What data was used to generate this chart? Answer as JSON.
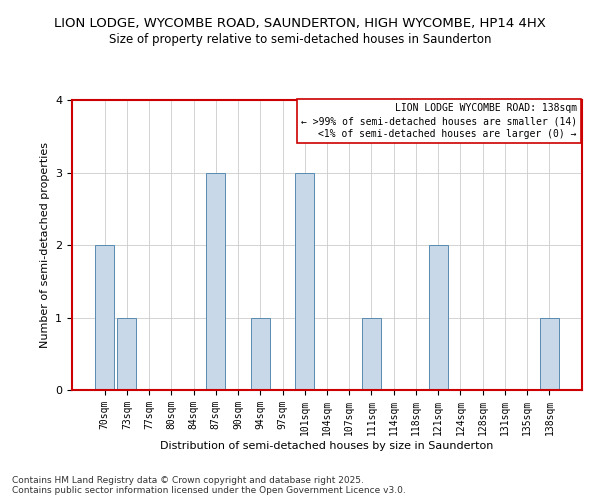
{
  "title": "LION LODGE, WYCOMBE ROAD, SAUNDERTON, HIGH WYCOMBE, HP14 4HX",
  "subtitle": "Size of property relative to semi-detached houses in Saunderton",
  "xlabel": "Distribution of semi-detached houses by size in Saunderton",
  "ylabel": "Number of semi-detached properties",
  "footnote1": "Contains HM Land Registry data © Crown copyright and database right 2025.",
  "footnote2": "Contains public sector information licensed under the Open Government Licence v3.0.",
  "categories": [
    "70sqm",
    "73sqm",
    "77sqm",
    "80sqm",
    "84sqm",
    "87sqm",
    "90sqm",
    "94sqm",
    "97sqm",
    "101sqm",
    "104sqm",
    "107sqm",
    "111sqm",
    "114sqm",
    "118sqm",
    "121sqm",
    "124sqm",
    "128sqm",
    "131sqm",
    "135sqm",
    "138sqm"
  ],
  "values": [
    2,
    1,
    0,
    0,
    0,
    3,
    0,
    1,
    0,
    3,
    0,
    0,
    1,
    0,
    0,
    2,
    0,
    0,
    0,
    0,
    1
  ],
  "bar_color": "#c8d8e8",
  "bar_edge_color": "#5a8ab0",
  "legend_title": "LION LODGE WYCOMBE ROAD: 138sqm",
  "legend_line1": "← >99% of semi-detached houses are smaller (14)",
  "legend_line2": "<1% of semi-detached houses are larger (0) →",
  "ylim": [
    0,
    4
  ],
  "yticks": [
    0,
    1,
    2,
    3,
    4
  ],
  "title_fontsize": 9.5,
  "subtitle_fontsize": 8.5,
  "axis_label_fontsize": 8,
  "tick_fontsize": 7,
  "footnote_fontsize": 6.5,
  "legend_fontsize": 7
}
